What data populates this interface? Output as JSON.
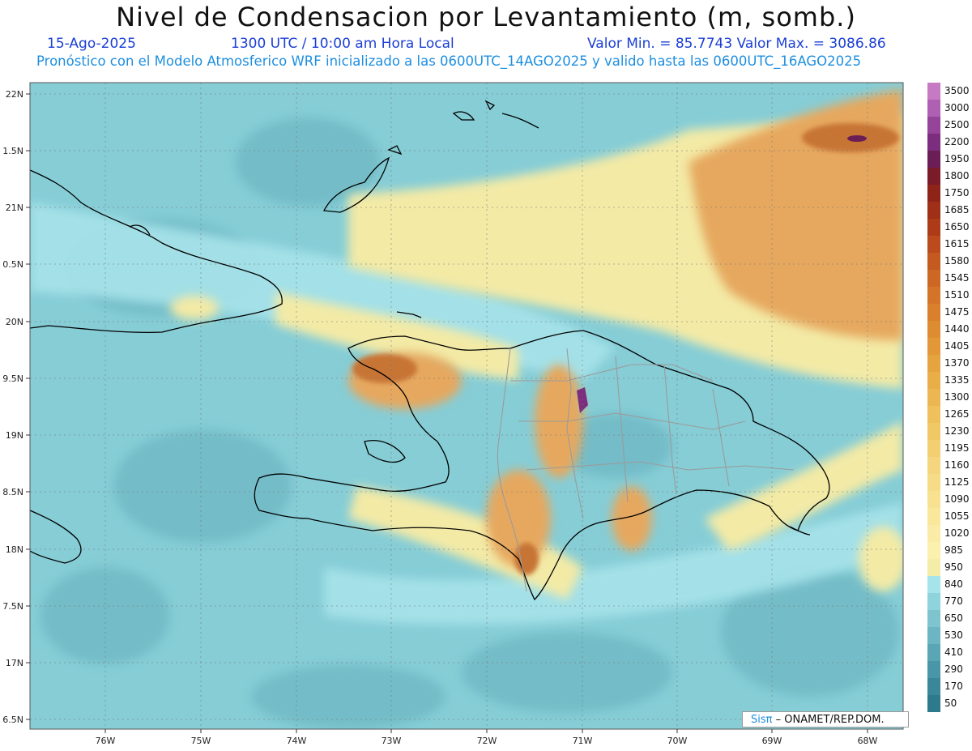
{
  "title": "Nivel de Condensacion por Levantamiento (m, somb.)",
  "date": "15-Ago-2025",
  "time": "1300 UTC / 10:00 am Hora Local",
  "min_max": "Valor Min. = 85.7743   Valor Max. = 3086.86",
  "forecast": "Pronóstico con el Modelo Atmosferico WRF inicializado a las 0600UTC_14AGO2025 y valido hasta las   0600UTC_16AGO2025",
  "credit": {
    "brand": "Sisπ",
    "org": "– ONAMET/REP.DOM."
  },
  "lat_labels": [
    "22N",
    "1.5N",
    "21N",
    "0.5N",
    "20N",
    "9.5N",
    "19N",
    "8.5N",
    "18N",
    "7.5N",
    "17N",
    "6.5N"
  ],
  "lon_labels": [
    "76W",
    "75W",
    "74W",
    "73W",
    "72W",
    "71W",
    "70W",
    "69W",
    "68W"
  ],
  "colorbar": {
    "labels": [
      "3500",
      "3000",
      "2500",
      "2200",
      "1950",
      "1800",
      "1750",
      "1685",
      "1650",
      "1615",
      "1580",
      "1545",
      "1510",
      "1475",
      "1440",
      "1405",
      "1370",
      "1335",
      "1300",
      "1265",
      "1230",
      "1195",
      "1160",
      "1125",
      "1090",
      "1055",
      "1020",
      "985",
      "950",
      "840",
      "770",
      "650",
      "530",
      "410",
      "290",
      "170",
      "50"
    ],
    "colors": [
      "#c77ac4",
      "#b060b2",
      "#96449a",
      "#7c2d7d",
      "#6b1d55",
      "#7a1b28",
      "#8e2418",
      "#9f2f16",
      "#ae3b18",
      "#bb4a1c",
      "#c55a20",
      "#cd6824",
      "#d47428",
      "#da802c",
      "#de8c32",
      "#e29838",
      "#e6a440",
      "#e9ae48",
      "#ecb752",
      "#efc05c",
      "#f1c866",
      "#f3cf72",
      "#f5d67e",
      "#f7dc88",
      "#f8e292",
      "#f9e79c",
      "#faeca6",
      "#fbf0ae",
      "#f3eda8",
      "#a4e4ea",
      "#8fd3dc",
      "#7ec4cf",
      "#6cb5c2",
      "#5aa6b5",
      "#4896a7",
      "#3a8799",
      "#2c7a8c"
    ]
  },
  "colors": {
    "ocean": "#86cdd6",
    "warm": "#f2e7a8",
    "orange": "#e3a15a",
    "brown": "#b8602a",
    "coast": "#000000",
    "border": "#9b9b9b"
  }
}
